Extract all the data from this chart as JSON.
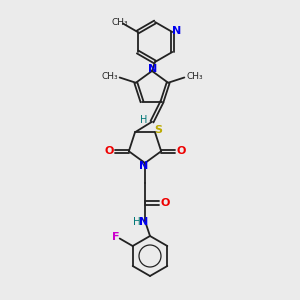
{
  "background_color": "#ebebeb",
  "bond_color": "#222222",
  "N_color": "#0000ee",
  "O_color": "#ee0000",
  "S_color": "#bbaa00",
  "F_color": "#cc00cc",
  "H_color": "#007777",
  "figsize": [
    3.0,
    3.0
  ],
  "dpi": 100,
  "xlim": [
    0,
    300
  ],
  "ylim": [
    0,
    300
  ]
}
